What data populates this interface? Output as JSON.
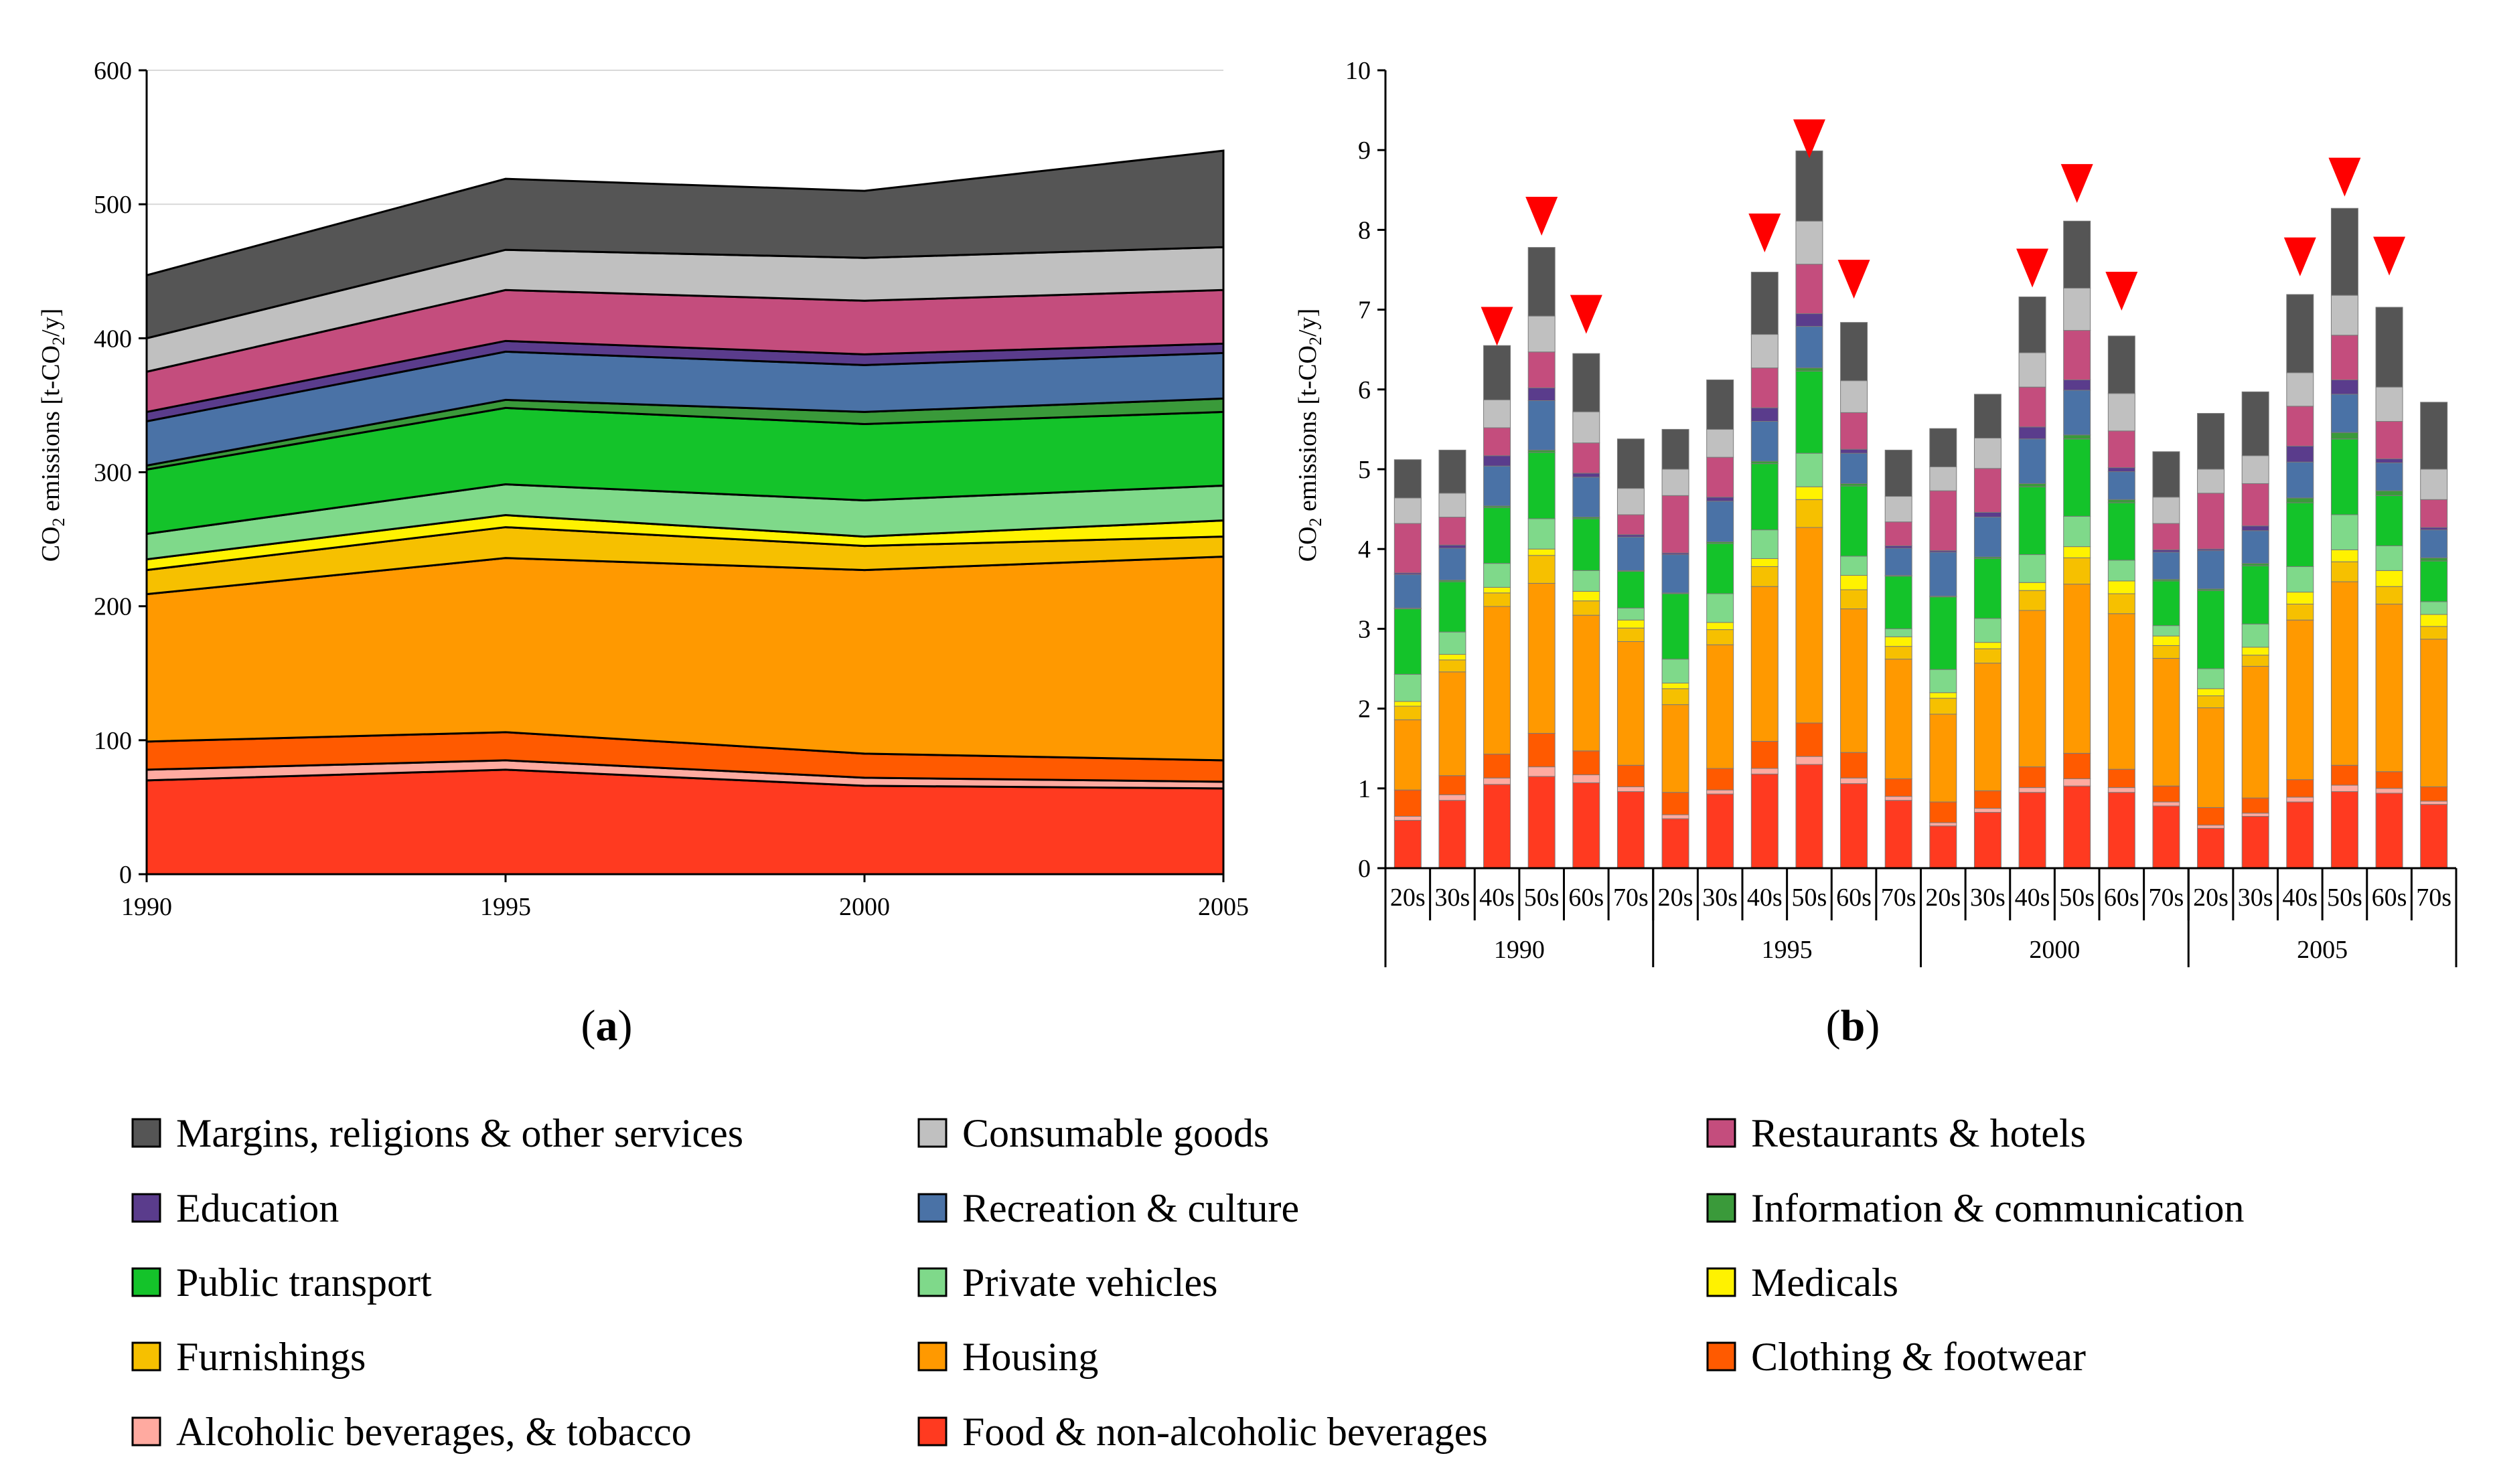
{
  "legend": [
    {
      "key": "margins",
      "label": "Margins, religions & other services",
      "color": "#555555"
    },
    {
      "key": "consumable",
      "label": "Consumable goods",
      "color": "#c0c0c0"
    },
    {
      "key": "restaurants",
      "label": "Restaurants & hotels",
      "color": "#c44d7d"
    },
    {
      "key": "education",
      "label": "Education",
      "color": "#5a3c8c"
    },
    {
      "key": "recreation",
      "label": "Recreation & culture",
      "color": "#4a72a6"
    },
    {
      "key": "information",
      "label": "Information & communication",
      "color": "#3a9a3a"
    },
    {
      "key": "public_transport",
      "label": "Public transport",
      "color": "#14c32a"
    },
    {
      "key": "private_vehicles",
      "label": "Private vehicles",
      "color": "#7fd98a"
    },
    {
      "key": "medicals",
      "label": "Medicals",
      "color": "#fff200"
    },
    {
      "key": "furnishings",
      "label": "Furnishings",
      "color": "#f6c000"
    },
    {
      "key": "housing",
      "label": "Housing",
      "color": "#ff9900"
    },
    {
      "key": "clothing",
      "label": "Clothing & footwear",
      "color": "#ff5a00"
    },
    {
      "key": "alcohol",
      "label": "Alcoholic beverages, & tobacco",
      "color": "#ffaaa0"
    },
    {
      "key": "food",
      "label": "Food & non-alcoholic beverages",
      "color": "#ff3a20"
    }
  ],
  "chart_data": [
    {
      "id": "a",
      "type": "area",
      "panel_label": "(a)",
      "panel_letter": "a",
      "xlabel": "",
      "ylabel_prefix": "CO",
      "ylabel_sub": "2",
      "ylabel_mid": " emissions [t-CO",
      "ylabel_sub2": "2",
      "ylabel_suffix": "/y]",
      "x": [
        "1990",
        "1995",
        "2000",
        "2005"
      ],
      "ylim": [
        0,
        600
      ],
      "yticks": [
        "0",
        "100",
        "200",
        "300",
        "400",
        "500",
        "600"
      ],
      "series": [
        {
          "key": "food",
          "values": [
            70,
            78,
            66,
            64
          ]
        },
        {
          "key": "alcohol",
          "values": [
            8,
            7,
            6,
            5
          ]
        },
        {
          "key": "clothing",
          "values": [
            21,
            21,
            18,
            16
          ]
        },
        {
          "key": "housing",
          "values": [
            110,
            130,
            137,
            152
          ]
        },
        {
          "key": "furnishings",
          "values": [
            18,
            23,
            18,
            15
          ]
        },
        {
          "key": "medicals",
          "values": [
            8,
            9,
            7,
            12
          ]
        },
        {
          "key": "private_vehicles",
          "values": [
            19,
            23,
            27,
            26
          ]
        },
        {
          "key": "public_transport",
          "values": [
            48,
            57,
            57,
            55
          ]
        },
        {
          "key": "information",
          "values": [
            3,
            6,
            9,
            10
          ]
        },
        {
          "key": "recreation",
          "values": [
            33,
            36,
            35,
            34
          ]
        },
        {
          "key": "education",
          "values": [
            7,
            8,
            8,
            7
          ]
        },
        {
          "key": "restaurants",
          "values": [
            30,
            38,
            40,
            40
          ]
        },
        {
          "key": "consumable",
          "values": [
            25,
            30,
            32,
            32
          ]
        },
        {
          "key": "margins",
          "values": [
            47,
            53,
            50,
            72
          ]
        }
      ]
    },
    {
      "id": "b",
      "type": "bar",
      "stacked": true,
      "panel_label": "(b)",
      "panel_letter": "b",
      "ylabel_prefix": "CO",
      "ylabel_sub": "2",
      "ylabel_mid": " emissions [t-CO",
      "ylabel_sub2": "2",
      "ylabel_suffix": "/y]",
      "ylim": [
        0,
        10
      ],
      "yticks": [
        "0",
        "1",
        "2",
        "3",
        "4",
        "5",
        "6",
        "7",
        "8",
        "9",
        "10"
      ],
      "groups": [
        "1990",
        "1995",
        "2000",
        "2005"
      ],
      "categories": [
        "20s",
        "30s",
        "40s",
        "50s",
        "60s",
        "70s"
      ],
      "bar_totals": [
        [
          5.12,
          5.34,
          6.38,
          7.76,
          6.53,
          5.56
        ],
        [
          5.71,
          6.28,
          7.55,
          8.73,
          6.97,
          5.37
        ],
        [
          5.55,
          6.0,
          7.11,
          8.17,
          6.82,
          5.4
        ],
        [
          5.73,
          6.14,
          7.25,
          8.25,
          7.26,
          5.95
        ]
      ],
      "markers": [
        {
          "group": "1990",
          "category": "40s"
        },
        {
          "group": "1990",
          "category": "50s"
        },
        {
          "group": "1990",
          "category": "60s"
        },
        {
          "group": "1995",
          "category": "40s"
        },
        {
          "group": "1995",
          "category": "50s"
        },
        {
          "group": "1995",
          "category": "60s"
        },
        {
          "group": "2000",
          "category": "40s"
        },
        {
          "group": "2000",
          "category": "50s"
        },
        {
          "group": "2000",
          "category": "60s"
        },
        {
          "group": "2005",
          "category": "40s"
        },
        {
          "group": "2005",
          "category": "50s"
        },
        {
          "group": "2005",
          "category": "60s"
        }
      ],
      "marker_color": "#ff0000",
      "series": [
        {
          "key": "food",
          "values": [
            [
              0.6,
              0.85,
              1.05,
              1.15,
              1.07,
              0.96
            ],
            [
              0.62,
              0.93,
              1.18,
              1.3,
              1.06,
              0.85
            ],
            [
              0.53,
              0.7,
              0.95,
              1.03,
              0.95,
              0.78
            ],
            [
              0.5,
              0.65,
              0.83,
              0.96,
              0.94,
              0.8
            ]
          ]
        },
        {
          "key": "alcohol",
          "values": [
            [
              0.05,
              0.07,
              0.08,
              0.12,
              0.1,
              0.06
            ],
            [
              0.05,
              0.05,
              0.07,
              0.1,
              0.07,
              0.05
            ],
            [
              0.04,
              0.05,
              0.06,
              0.09,
              0.06,
              0.05
            ],
            [
              0.04,
              0.04,
              0.06,
              0.08,
              0.06,
              0.04
            ]
          ]
        },
        {
          "key": "clothing",
          "values": [
            [
              0.33,
              0.24,
              0.3,
              0.42,
              0.3,
              0.27
            ],
            [
              0.28,
              0.27,
              0.34,
              0.42,
              0.32,
              0.22
            ],
            [
              0.26,
              0.22,
              0.26,
              0.32,
              0.23,
              0.2
            ],
            [
              0.22,
              0.19,
              0.22,
              0.25,
              0.21,
              0.18
            ]
          ]
        },
        {
          "key": "housing",
          "values": [
            [
              0.88,
              1.3,
              1.85,
              1.88,
              1.7,
              1.55
            ],
            [
              1.1,
              1.55,
              1.94,
              2.45,
              1.8,
              1.5
            ],
            [
              1.1,
              1.6,
              1.96,
              2.12,
              1.95,
              1.6
            ],
            [
              1.25,
              1.65,
              2.0,
              2.3,
              2.1,
              1.85
            ]
          ]
        },
        {
          "key": "furnishings",
          "values": [
            [
              0.17,
              0.15,
              0.17,
              0.35,
              0.18,
              0.17
            ],
            [
              0.2,
              0.19,
              0.25,
              0.35,
              0.24,
              0.16
            ],
            [
              0.2,
              0.18,
              0.25,
              0.33,
              0.25,
              0.16
            ],
            [
              0.15,
              0.14,
              0.2,
              0.25,
              0.22,
              0.16
            ]
          ]
        },
        {
          "key": "medicals",
          "values": [
            [
              0.06,
              0.07,
              0.07,
              0.08,
              0.12,
              0.1
            ],
            [
              0.07,
              0.09,
              0.1,
              0.16,
              0.18,
              0.12
            ],
            [
              0.07,
              0.08,
              0.1,
              0.14,
              0.16,
              0.12
            ],
            [
              0.09,
              0.1,
              0.15,
              0.15,
              0.2,
              0.15
            ]
          ]
        },
        {
          "key": "private_vehicles",
          "values": [
            [
              0.34,
              0.28,
              0.3,
              0.38,
              0.26,
              0.15
            ],
            [
              0.3,
              0.36,
              0.36,
              0.42,
              0.24,
              0.1
            ],
            [
              0.29,
              0.3,
              0.35,
              0.38,
              0.26,
              0.13
            ],
            [
              0.25,
              0.29,
              0.32,
              0.44,
              0.31,
              0.16
            ]
          ]
        },
        {
          "key": "public_transport",
          "values": [
            [
              0.82,
              0.63,
              0.7,
              0.83,
              0.65,
              0.46
            ],
            [
              0.82,
              0.63,
              0.83,
              1.03,
              0.88,
              0.66
            ],
            [
              0.91,
              0.75,
              0.85,
              0.97,
              0.72,
              0.56
            ],
            [
              0.98,
              0.73,
              0.8,
              0.95,
              0.63,
              0.51
            ]
          ]
        },
        {
          "key": "information",
          "values": [
            [
              0.01,
              0.02,
              0.02,
              0.03,
              0.02,
              0.01
            ],
            [
              0.01,
              0.02,
              0.03,
              0.04,
              0.03,
              0.01
            ],
            [
              0.01,
              0.02,
              0.04,
              0.05,
              0.04,
              0.02
            ],
            [
              0.02,
              0.03,
              0.06,
              0.08,
              0.06,
              0.04
            ]
          ]
        },
        {
          "key": "recreation",
          "values": [
            [
              0.42,
              0.4,
              0.5,
              0.62,
              0.5,
              0.42
            ],
            [
              0.48,
              0.51,
              0.5,
              0.52,
              0.38,
              0.34
            ],
            [
              0.55,
              0.5,
              0.56,
              0.56,
              0.35,
              0.34
            ],
            [
              0.48,
              0.41,
              0.45,
              0.48,
              0.35,
              0.35
            ]
          ]
        },
        {
          "key": "education",
          "values": [
            [
              0.02,
              0.04,
              0.13,
              0.16,
              0.05,
              0.03
            ],
            [
              0.02,
              0.05,
              0.17,
              0.16,
              0.05,
              0.03
            ],
            [
              0.02,
              0.06,
              0.15,
              0.13,
              0.05,
              0.03
            ],
            [
              0.02,
              0.06,
              0.2,
              0.18,
              0.05,
              0.03
            ]
          ]
        },
        {
          "key": "restaurants",
          "values": [
            [
              0.62,
              0.35,
              0.35,
              0.45,
              0.38,
              0.25
            ],
            [
              0.72,
              0.5,
              0.5,
              0.62,
              0.46,
              0.3
            ],
            [
              0.75,
              0.55,
              0.5,
              0.62,
              0.46,
              0.33
            ],
            [
              0.7,
              0.53,
              0.5,
              0.56,
              0.47,
              0.35
            ]
          ]
        },
        {
          "key": "consumable",
          "values": [
            [
              0.32,
              0.3,
              0.35,
              0.45,
              0.39,
              0.33
            ],
            [
              0.33,
              0.35,
              0.42,
              0.54,
              0.4,
              0.32
            ],
            [
              0.3,
              0.38,
              0.43,
              0.53,
              0.47,
              0.33
            ],
            [
              0.3,
              0.35,
              0.42,
              0.5,
              0.43,
              0.38
            ]
          ]
        },
        {
          "key": "margins",
          "values": [
            [
              0.48,
              0.54,
              0.68,
              0.86,
              0.73,
              0.62
            ],
            [
              0.5,
              0.62,
              0.78,
              0.88,
              0.73,
              0.58
            ],
            [
              0.48,
              0.55,
              0.7,
              0.84,
              0.72,
              0.57
            ],
            [
              0.7,
              0.8,
              0.98,
              1.09,
              1.0,
              0.84
            ]
          ]
        }
      ]
    }
  ]
}
